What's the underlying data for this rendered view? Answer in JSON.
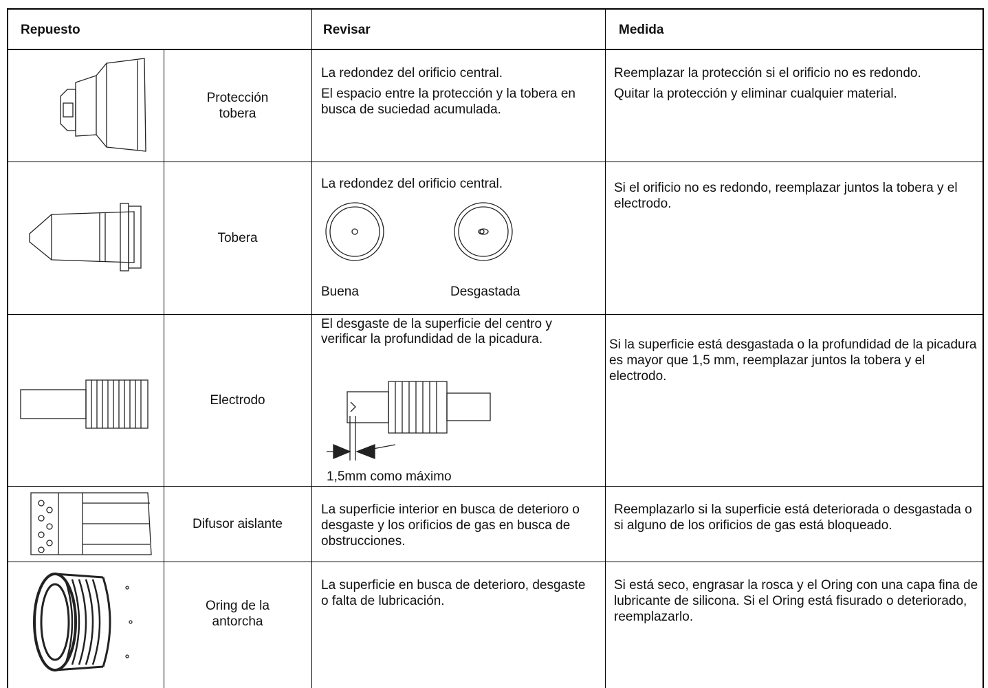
{
  "header": {
    "part": "Repuesto",
    "check": "Revisar",
    "action": "Medida"
  },
  "rows": [
    {
      "part": "Protección tobera",
      "check": [
        "La redondez del orificio central.",
        "El espacio entre la protección y la tobera en busca de suciedad acumulada."
      ],
      "action": [
        "Reemplazar la protección si el orificio no es redondo.",
        "Quitar la protección y eliminar cualquier material."
      ]
    },
    {
      "part": "Tobera",
      "check": [
        "La redondez del orificio central."
      ],
      "labels": [
        "Buena",
        "Desgastada"
      ],
      "action": [
        "Si el orificio no es redondo, reemplazar juntos la tobera y el electrodo."
      ]
    },
    {
      "part": "Electrodo",
      "check": [
        "El desgaste de la superficie del centro y verificar la profundidad de la picadura."
      ],
      "dimension": "1,5mm como máximo",
      "action": [
        "Si la superficie está desgastada o la profundidad de la picadura es mayor que 1,5 mm, reemplazar juntos la tobera y el electrodo."
      ]
    },
    {
      "part": "Difusor aislante",
      "check": [
        "La superficie interior en busca de deterioro o desgaste y los orificios de gas en busca de obstrucciones."
      ],
      "action": [
        "Reemplazarlo si la superficie está deteriorada o desgastada o si alguno de los orificios de gas está bloqueado."
      ]
    },
    {
      "part": "Oring de la antorcha",
      "check": [
        "La superficie en busca de deterioro, desgaste o falta de lubricación."
      ],
      "action": [
        "Si está seco, engrasar la rosca y el Oring con una capa fina de lubricante de silicona. Si el Oring está fisurado o deteriorado, reemplazarlo."
      ]
    }
  ]
}
